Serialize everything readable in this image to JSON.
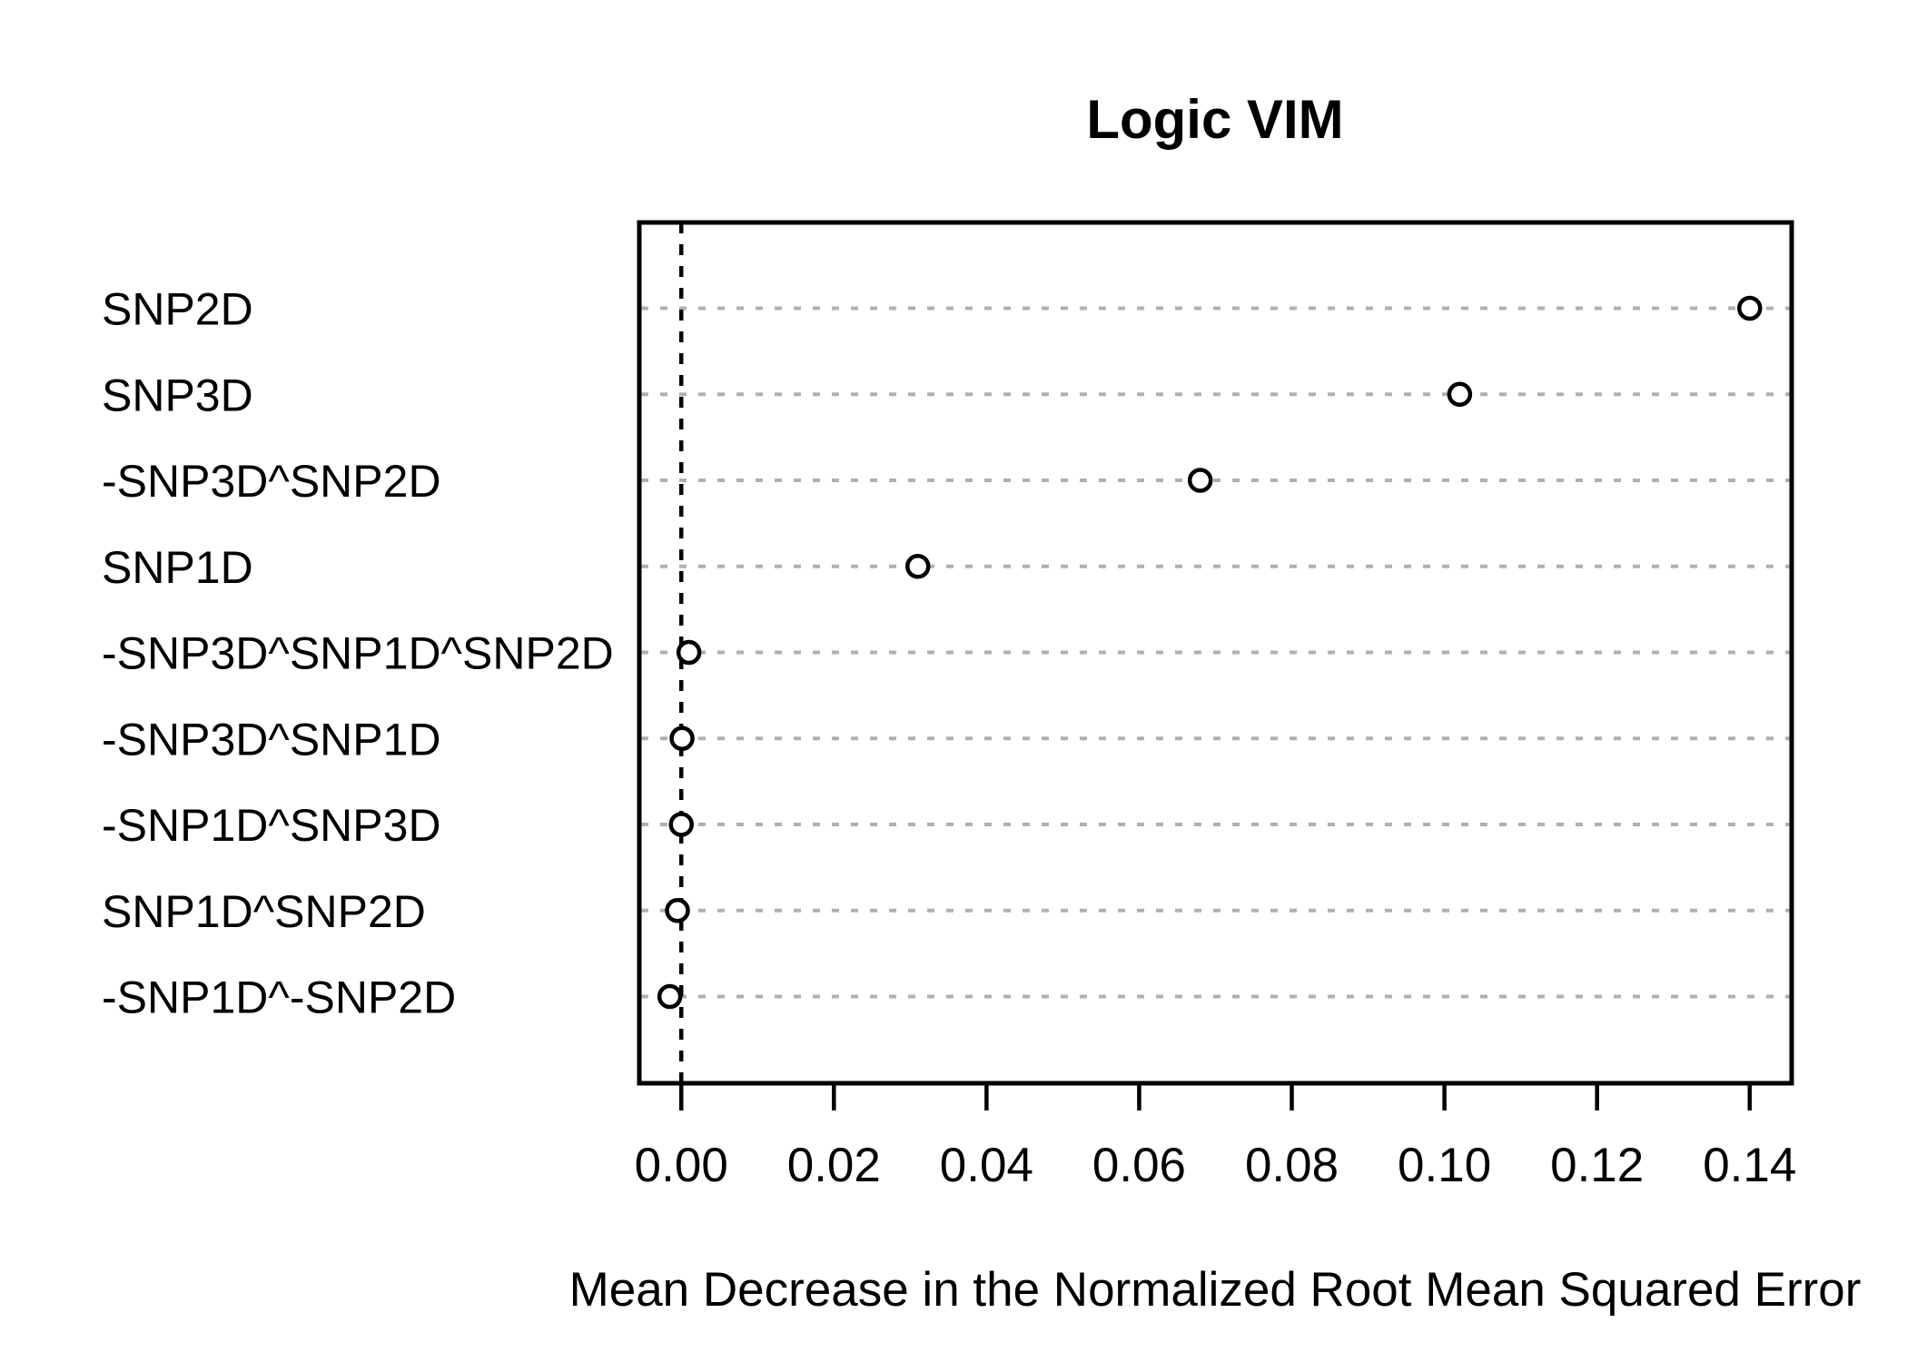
{
  "chart_data": {
    "type": "scatter",
    "variant": "dotchart",
    "title": "Logic VIM",
    "xlabel": "Mean Decrease in the Normalized Root Mean Squared Error",
    "categories": [
      "SNP2D",
      "SNP3D",
      "-SNP3D^SNP2D",
      "SNP1D",
      "-SNP3D^SNP1D^SNP2D",
      "-SNP3D^SNP1D",
      "-SNP1D^SNP3D",
      "SNP1D^SNP2D",
      "-SNP1D^-SNP2D"
    ],
    "values": [
      0.14,
      0.102,
      0.068,
      0.031,
      0.001,
      0.0001,
      0.0,
      -0.0005,
      -0.0015
    ],
    "x_ticks": [
      {
        "label": "0.00",
        "value": 0.0
      },
      {
        "label": "0.02",
        "value": 0.02
      },
      {
        "label": "0.04",
        "value": 0.04
      },
      {
        "label": "0.06",
        "value": 0.06
      },
      {
        "label": "0.08",
        "value": 0.08
      },
      {
        "label": "0.10",
        "value": 0.1
      },
      {
        "label": "0.12",
        "value": 0.12
      },
      {
        "label": "0.14",
        "value": 0.14
      }
    ],
    "xlim": [
      -0.0055,
      0.1455
    ],
    "reference_line_x": 0,
    "grid": "dotted-horizontal",
    "legend": "none",
    "colors": {
      "foreground": "#000000",
      "background": "#ffffff",
      "gridline": "#b0b0b0",
      "point_stroke": "#000000",
      "point_fill": "#ffffff"
    }
  }
}
